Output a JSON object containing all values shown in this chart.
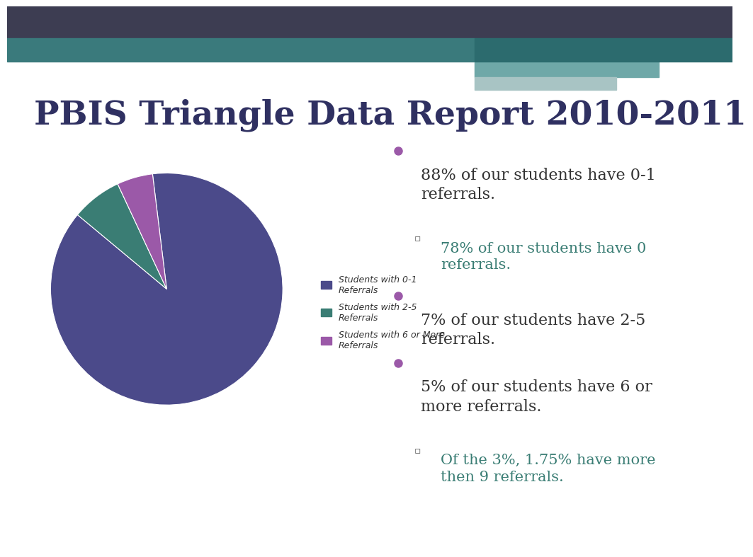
{
  "title": "PBIS Triangle Data Report 2010-2011",
  "title_color": "#2F3061",
  "title_fontsize": 34,
  "background_color": "#FFFFFF",
  "top_bar_color": "#3D3D52",
  "teal_bar1_color": "#3A7A7C",
  "teal_bar2_color": "#6FA8A8",
  "teal_bar3_color": "#A8C4C4",
  "pie_values": [
    88,
    7,
    5
  ],
  "pie_colors": [
    "#4B4A8A",
    "#3A7D74",
    "#9B59A8"
  ],
  "pie_labels": [
    "Students with 0-1\nReferrals",
    "Students with 2-5\nReferrals",
    "Students with 6 or More\nReferrals"
  ],
  "legend_color": "#333333",
  "legend_fontsize": 9,
  "text_dark": "#333333",
  "text_teal": "#3A7D74",
  "text_purple_bullet": "#9B59A8",
  "bullet_fontsize": 16,
  "sub_bullet_fontsize": 15
}
